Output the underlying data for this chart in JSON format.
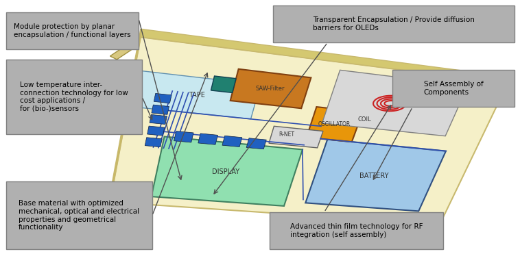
{
  "bg_color": "#ffffff",
  "board_color": "#f5f0c8",
  "board_edge_color": "#c8b96e",
  "display_color": "#90e0b0",
  "battery_color": "#a0c8e8",
  "tape_color": "#c8e8f0",
  "oscillator_color": "#e8960a",
  "saw_filter_color": "#c87820",
  "coil_bg_color": "#d8d8d8",
  "coil_color": "#cc2222",
  "connector_color": "#3050b0",
  "rnet_color": "#d0d0d0",
  "label_box_color": "#b0b0b0",
  "label_box_edge": "#808080",
  "line_color": "#505050",
  "text_color": "#000000",
  "labels": {
    "top_left": "Module protection by planar\nencapsulation / functional layers",
    "mid_left": "Low temperature inter-\nconnection technology for low\ncost applications /\nfor (bio-)sensors",
    "bot_left": "Base material with optimized\nmechanical, optical and electrical\nproperties and geometrical\nfunctionality",
    "top_right": "Transparent Encapsulation / Provide diffusion\nbarriers for OLEDs",
    "mid_right": "Self Assembly of\nComponents",
    "bot_right": "Advanced thin film technology for RF\nintegration (self assembly)"
  },
  "component_labels": {
    "display": "DISPLAY",
    "battery": "BATTERY",
    "tape": "TAPE",
    "rnet": "R-NET",
    "oscillator": "OSCILLATOR",
    "coil": "COIL",
    "saw": "SAW-Filter"
  }
}
